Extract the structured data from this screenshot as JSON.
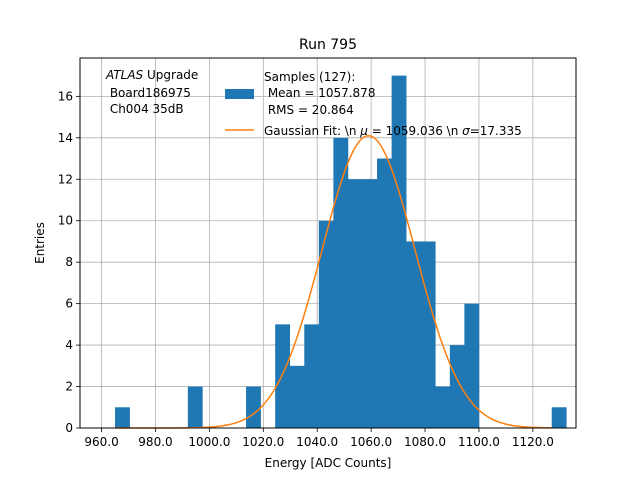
{
  "chart_data": {
    "type": "bar",
    "title": "Run 795",
    "xlabel": "Energy [ADC Counts]",
    "ylabel": "Entries",
    "xlim": [
      952,
      1136
    ],
    "ylim": [
      0,
      17.85
    ],
    "grid": true,
    "xticks": [
      960,
      980,
      1000,
      1020,
      1040,
      1060,
      1080,
      1100,
      1120
    ],
    "xtick_labels": [
      "960.0",
      "980.0",
      "1000.0",
      "1020.0",
      "1040.0",
      "1060.0",
      "1080.0",
      "1100.0",
      "1120.0"
    ],
    "yticks": [
      0,
      2,
      4,
      6,
      8,
      10,
      12,
      14,
      16
    ],
    "ytick_labels": [
      "0",
      "2",
      "4",
      "6",
      "8",
      "10",
      "12",
      "14",
      "16"
    ],
    "bins": {
      "edges": [
        965.0,
        970.4,
        975.8,
        981.2,
        986.6,
        992.0,
        997.4,
        1002.8,
        1008.2,
        1013.6,
        1019.0,
        1024.4,
        1029.8,
        1035.2,
        1040.6,
        1046.0,
        1051.4,
        1056.8,
        1062.2,
        1067.6,
        1073.0,
        1078.4,
        1083.8,
        1089.2,
        1094.6,
        1100.0,
        1105.4,
        1110.8,
        1116.2,
        1121.6,
        1127.0,
        1132.4
      ],
      "counts": [
        1,
        0,
        0,
        0,
        0,
        2,
        0,
        0,
        0,
        2,
        0,
        5,
        3,
        5,
        10,
        14,
        12,
        12,
        13,
        17,
        9,
        9,
        2,
        4,
        6,
        0,
        0,
        0,
        0,
        0,
        1
      ]
    },
    "series": [
      {
        "name": "Samples (127):\n Mean = 1057.878\n RMS = 20.864",
        "kind": "histogram",
        "color": "#1f77b4"
      },
      {
        "name": "Gaussian Fit: \\n $\\mu$ = 1059.036 \\n $\\sigma$=17.335",
        "kind": "line",
        "color": "#ff7f0e",
        "mu": 1059.036,
        "sigma": 17.335,
        "peak": 14.1
      }
    ],
    "legend": {
      "placement": "upper-center",
      "entries": [
        {
          "lines": [
            "Samples (127):",
            " Mean = 1057.878",
            " RMS = 20.864"
          ]
        },
        {
          "lines": [
            "Gaussian Fit: \\n ",
            "μ",
            " = 1059.036 \\n ",
            "σ",
            "=17.335"
          ]
        }
      ]
    },
    "annotation": {
      "placement": "upper-left",
      "italic_part": "ATLAS",
      "rest_first_line": " Upgrade",
      "line2": " Board186975",
      "line3": " Ch004 35dB"
    }
  }
}
